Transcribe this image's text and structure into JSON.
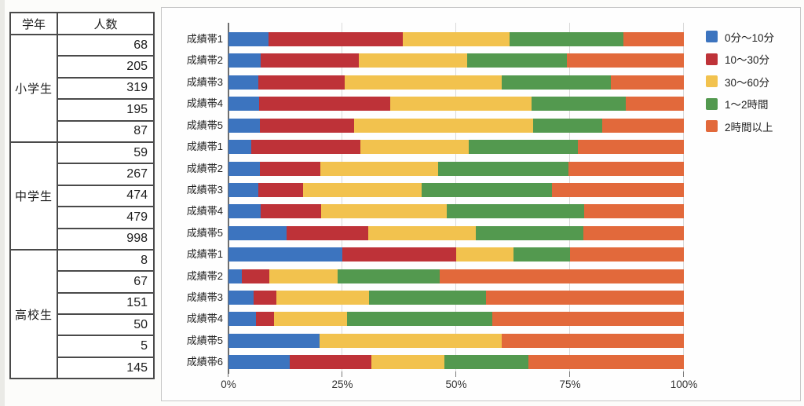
{
  "table": {
    "headers": {
      "grade": "学年",
      "count": "人数"
    },
    "groups": [
      {
        "label": "小学生",
        "values": [
          68,
          205,
          319,
          195,
          87
        ]
      },
      {
        "label": "中学生",
        "values": [
          59,
          267,
          474,
          479,
          998
        ]
      },
      {
        "label": "高校生",
        "values": [
          8,
          67,
          151,
          50,
          5,
          145
        ]
      }
    ]
  },
  "chart_data": {
    "type": "bar",
    "stacked": true,
    "orientation": "horizontal",
    "unit": "percent",
    "categories": [
      "成績帯1",
      "成績帯2",
      "成績帯3",
      "成績帯4",
      "成績帯5",
      "成績帯1",
      "成績帯2",
      "成績帯3",
      "成績帯4",
      "成績帯5",
      "成績帯1",
      "成績帯2",
      "成績帯3",
      "成績帯4",
      "成績帯5",
      "成績帯6"
    ],
    "group_sizes": [
      5,
      5,
      6
    ],
    "series": [
      {
        "name": "0分〜10分",
        "color": "#3c74bf",
        "values": [
          8.8,
          7.1,
          6.5,
          6.7,
          6.9,
          5.0,
          6.9,
          6.5,
          7.1,
          12.8,
          25.0,
          3.0,
          5.6,
          6.0,
          20.0,
          13.4
        ]
      },
      {
        "name": "10〜30分",
        "color": "#be3238",
        "values": [
          29.4,
          21.5,
          19.1,
          28.8,
          20.7,
          23.9,
          13.2,
          9.9,
          13.3,
          17.9,
          25.0,
          6.0,
          5.0,
          4.0,
          0.0,
          18.0
        ]
      },
      {
        "name": "30〜60分",
        "color": "#f2c24e",
        "values": [
          23.5,
          23.9,
          34.4,
          31.1,
          39.3,
          23.8,
          26.0,
          26.0,
          27.5,
          23.6,
          12.5,
          14.9,
          20.2,
          16.0,
          40.0,
          16.0
        ]
      },
      {
        "name": "1〜2時間",
        "color": "#53994f",
        "values": [
          25.0,
          21.8,
          23.9,
          20.6,
          15.2,
          24.0,
          28.5,
          28.5,
          30.2,
          23.7,
          12.5,
          22.4,
          25.8,
          32.0,
          0.0,
          18.5
        ]
      },
      {
        "name": "2時間以上",
        "color": "#e2693b",
        "values": [
          13.3,
          25.7,
          16.1,
          12.8,
          17.9,
          23.3,
          25.4,
          29.0,
          21.9,
          22.0,
          25.0,
          53.7,
          43.4,
          42.0,
          40.0,
          34.1
        ]
      }
    ],
    "x_ticks": [
      "0%",
      "25%",
      "50%",
      "75%",
      "100%"
    ],
    "xlim": [
      0,
      100
    ],
    "title": "",
    "xlabel": "",
    "ylabel": "",
    "grid": true,
    "legend_position": "top-right"
  }
}
